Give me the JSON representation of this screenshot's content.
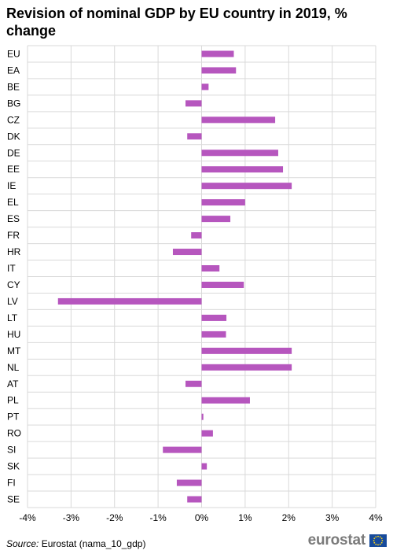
{
  "title": "Revision of nominal GDP by EU country in 2019, % change",
  "source": {
    "label": "Source:",
    "text": "Eurostat (nama_10_gdp)"
  },
  "logo": {
    "text": "eurostat",
    "flag_icon": "eu-flag-icon"
  },
  "chart_data": {
    "type": "bar",
    "orientation": "horizontal",
    "title": "Revision of nominal GDP by EU country in 2019, % change",
    "xlabel": "",
    "ylabel": "",
    "xlim": [
      -4,
      4
    ],
    "xticks": [
      -4,
      -3,
      -2,
      -1,
      0,
      1,
      2,
      3,
      4
    ],
    "xtick_labels": [
      "-4%",
      "-3%",
      "-2%",
      "-1%",
      "0%",
      "1%",
      "2%",
      "3%",
      "4%"
    ],
    "grid": true,
    "bar_color": "#b656be",
    "categories": [
      "EU",
      "EA",
      "BE",
      "BG",
      "CZ",
      "DK",
      "DE",
      "EE",
      "IE",
      "EL",
      "ES",
      "FR",
      "HR",
      "IT",
      "CY",
      "LV",
      "LT",
      "HU",
      "MT",
      "NL",
      "AT",
      "PL",
      "PT",
      "RO",
      "SI",
      "SK",
      "FI",
      "SE"
    ],
    "values": [
      0.74,
      0.79,
      0.16,
      -0.37,
      1.69,
      -0.33,
      1.76,
      1.87,
      2.07,
      1.0,
      0.66,
      -0.24,
      -0.66,
      0.41,
      0.97,
      -3.3,
      0.57,
      0.56,
      2.07,
      2.07,
      -0.37,
      1.11,
      0.04,
      0.26,
      -0.89,
      0.12,
      -0.57,
      -0.33
    ]
  }
}
